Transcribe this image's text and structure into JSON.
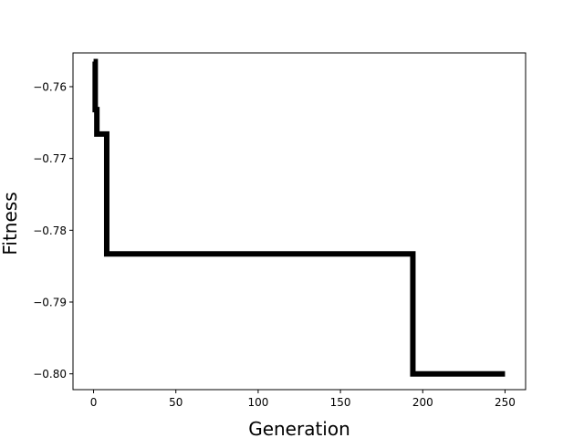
{
  "chart_data": {
    "type": "line",
    "title": "",
    "xlabel": "Generation",
    "ylabel": "Fitness",
    "xlim": [
      -12.5,
      262.5
    ],
    "ylim": [
      -0.8022,
      -0.7553
    ],
    "xticks": [
      0,
      50,
      100,
      150,
      200,
      250
    ],
    "xtick_labels": [
      "0",
      "50",
      "100",
      "150",
      "200",
      "250"
    ],
    "yticks": [
      -0.76,
      -0.77,
      -0.78,
      -0.79,
      -0.8
    ],
    "ytick_labels": [
      "−0.76",
      "−0.77",
      "−0.78",
      "−0.79",
      "−0.80"
    ],
    "grid": false,
    "line_color": "#000000",
    "series": [
      {
        "x": [
          0,
          1,
          1,
          2,
          2,
          7,
          7,
          8,
          8,
          193,
          193,
          194,
          194,
          250
        ],
        "y": [
          -0.7565,
          -0.7565,
          -0.7632,
          -0.7632,
          -0.7666,
          -0.7666,
          -0.7666,
          -0.7666,
          -0.7833,
          -0.7833,
          -0.7833,
          -0.7833,
          -0.8,
          -0.8
        ]
      }
    ]
  }
}
